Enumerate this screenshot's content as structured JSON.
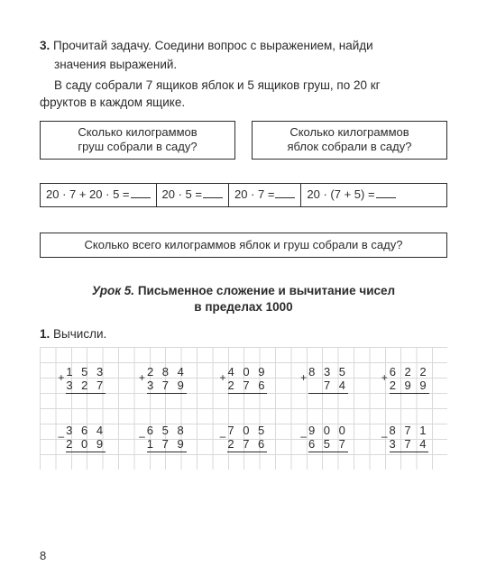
{
  "task3": {
    "number": "3.",
    "instruction_line1": "Прочитай задачу. Соедини вопрос с выражением, найди",
    "instruction_line2": "значения выражений.",
    "problem_line1": "В саду собрали 7 ящиков яблок и 5 ящиков груш, по 20 кг",
    "problem_line2": "фруктов в каждом ящике.",
    "q1_line1": "Сколько килограммов",
    "q1_line2": "груш собрали в саду?",
    "q2_line1": "Сколько килограммов",
    "q2_line2": "яблок собрали в саду?",
    "expr1": "20 · 7 + 20 · 5 =",
    "expr2": "20 · 5 =",
    "expr3": "20 · 7 =",
    "expr4": "20 · (7 + 5) =",
    "q3": "Сколько всего килограммов яблок и груш собрали в саду?"
  },
  "lesson": {
    "prefix": "Урок 5.",
    "title_line1": " Письменное сложение и вычитание чисел",
    "title_line2": "в пределах 1000"
  },
  "task1": {
    "number": "1.",
    "label": "Вычисли.",
    "row1": [
      {
        "sign": "+",
        "a": "1 5 3",
        "b": "3 2 7"
      },
      {
        "sign": "+",
        "a": "2 8 4",
        "b": "3 7 9"
      },
      {
        "sign": "+",
        "a": "4 0 9",
        "b": "2 7 6"
      },
      {
        "sign": "+",
        "a": "8 3 5",
        "b": "7 4"
      },
      {
        "sign": "+",
        "a": "6 2 2",
        "b": "2 9 9"
      }
    ],
    "row2": [
      {
        "sign": "–",
        "a": "3 6 4",
        "b": "2 0 9"
      },
      {
        "sign": "–",
        "a": "6 5 8",
        "b": "1 7 9"
      },
      {
        "sign": "–",
        "a": "7 0 5",
        "b": "2 7 6"
      },
      {
        "sign": "–",
        "a": "9 0 0",
        "b": "6 5 7"
      },
      {
        "sign": "–",
        "a": "8 7 1",
        "b": "3 7 4"
      }
    ]
  },
  "page_number": "8",
  "colors": {
    "text": "#2b2b2b",
    "border": "#2b2b2b",
    "grid": "#d9d9d9",
    "bg": "#ffffff"
  }
}
